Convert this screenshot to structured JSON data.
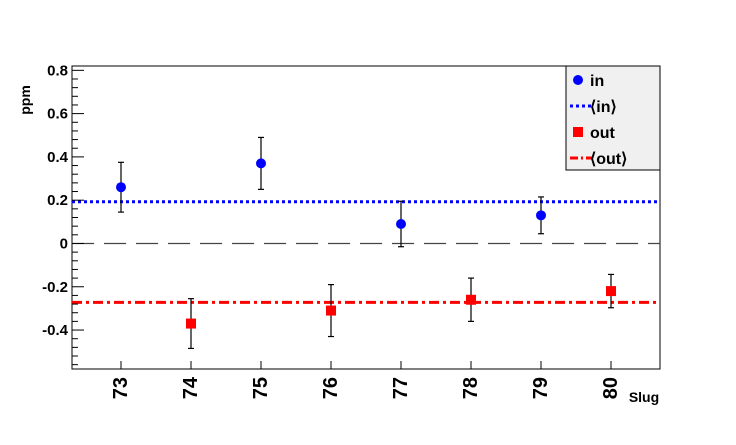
{
  "chart_data": {
    "type": "scatter",
    "xlabel": "Slug",
    "ylabel": "ppm",
    "categories": [
      "73",
      "74",
      "75",
      "76",
      "77",
      "78",
      "79",
      "80"
    ],
    "xlim": [
      72.3,
      80.7
    ],
    "ylim": [
      -0.58,
      0.82
    ],
    "y_ticks": [
      {
        "value": -0.4,
        "label": "-0.4"
      },
      {
        "value": -0.2,
        "label": "-0.2"
      },
      {
        "value": 0,
        "label": "0"
      },
      {
        "value": 0.2,
        "label": "0.2"
      },
      {
        "value": 0.4,
        "label": "0.4"
      },
      {
        "value": 0.6,
        "label": "0.6"
      },
      {
        "value": 0.8,
        "label": "0.8"
      }
    ],
    "zero_line": {
      "y": 0,
      "style": "dashed",
      "color": "#000000"
    },
    "series": [
      {
        "name": "in",
        "marker": "circle",
        "color": "#0000ff",
        "points": [
          {
            "x": 73,
            "y": 0.26,
            "err": 0.115
          },
          {
            "x": 75,
            "y": 0.37,
            "err": 0.12
          },
          {
            "x": 77,
            "y": 0.09,
            "err": 0.105
          },
          {
            "x": 79,
            "y": 0.13,
            "err": 0.085
          }
        ]
      },
      {
        "name": "out",
        "marker": "square",
        "color": "#ff0000",
        "points": [
          {
            "x": 74,
            "y": -0.37,
            "err": 0.115
          },
          {
            "x": 76,
            "y": -0.31,
            "err": 0.12
          },
          {
            "x": 78,
            "y": -0.26,
            "err": 0.1
          },
          {
            "x": 80,
            "y": -0.22,
            "err": 0.077
          }
        ]
      }
    ],
    "fit_lines": [
      {
        "name": "⟨in⟩",
        "y": 0.193,
        "color": "#0000ff",
        "style": "dotted"
      },
      {
        "name": "⟨out⟩",
        "y": -0.272,
        "color": "#ff0000",
        "style": "dash-dot"
      }
    ],
    "legend": {
      "placement": "top-right",
      "background": "#f0f0f0",
      "entries": [
        {
          "label": "in",
          "kind": "marker-circle",
          "color": "#0000ff"
        },
        {
          "label": "⟨in⟩",
          "kind": "line-dotted",
          "color": "#0000ff"
        },
        {
          "label": "out",
          "kind": "marker-square",
          "color": "#ff0000"
        },
        {
          "label": "⟨out⟩",
          "kind": "line-dash-dot",
          "color": "#ff0000"
        }
      ]
    },
    "grid": false
  }
}
